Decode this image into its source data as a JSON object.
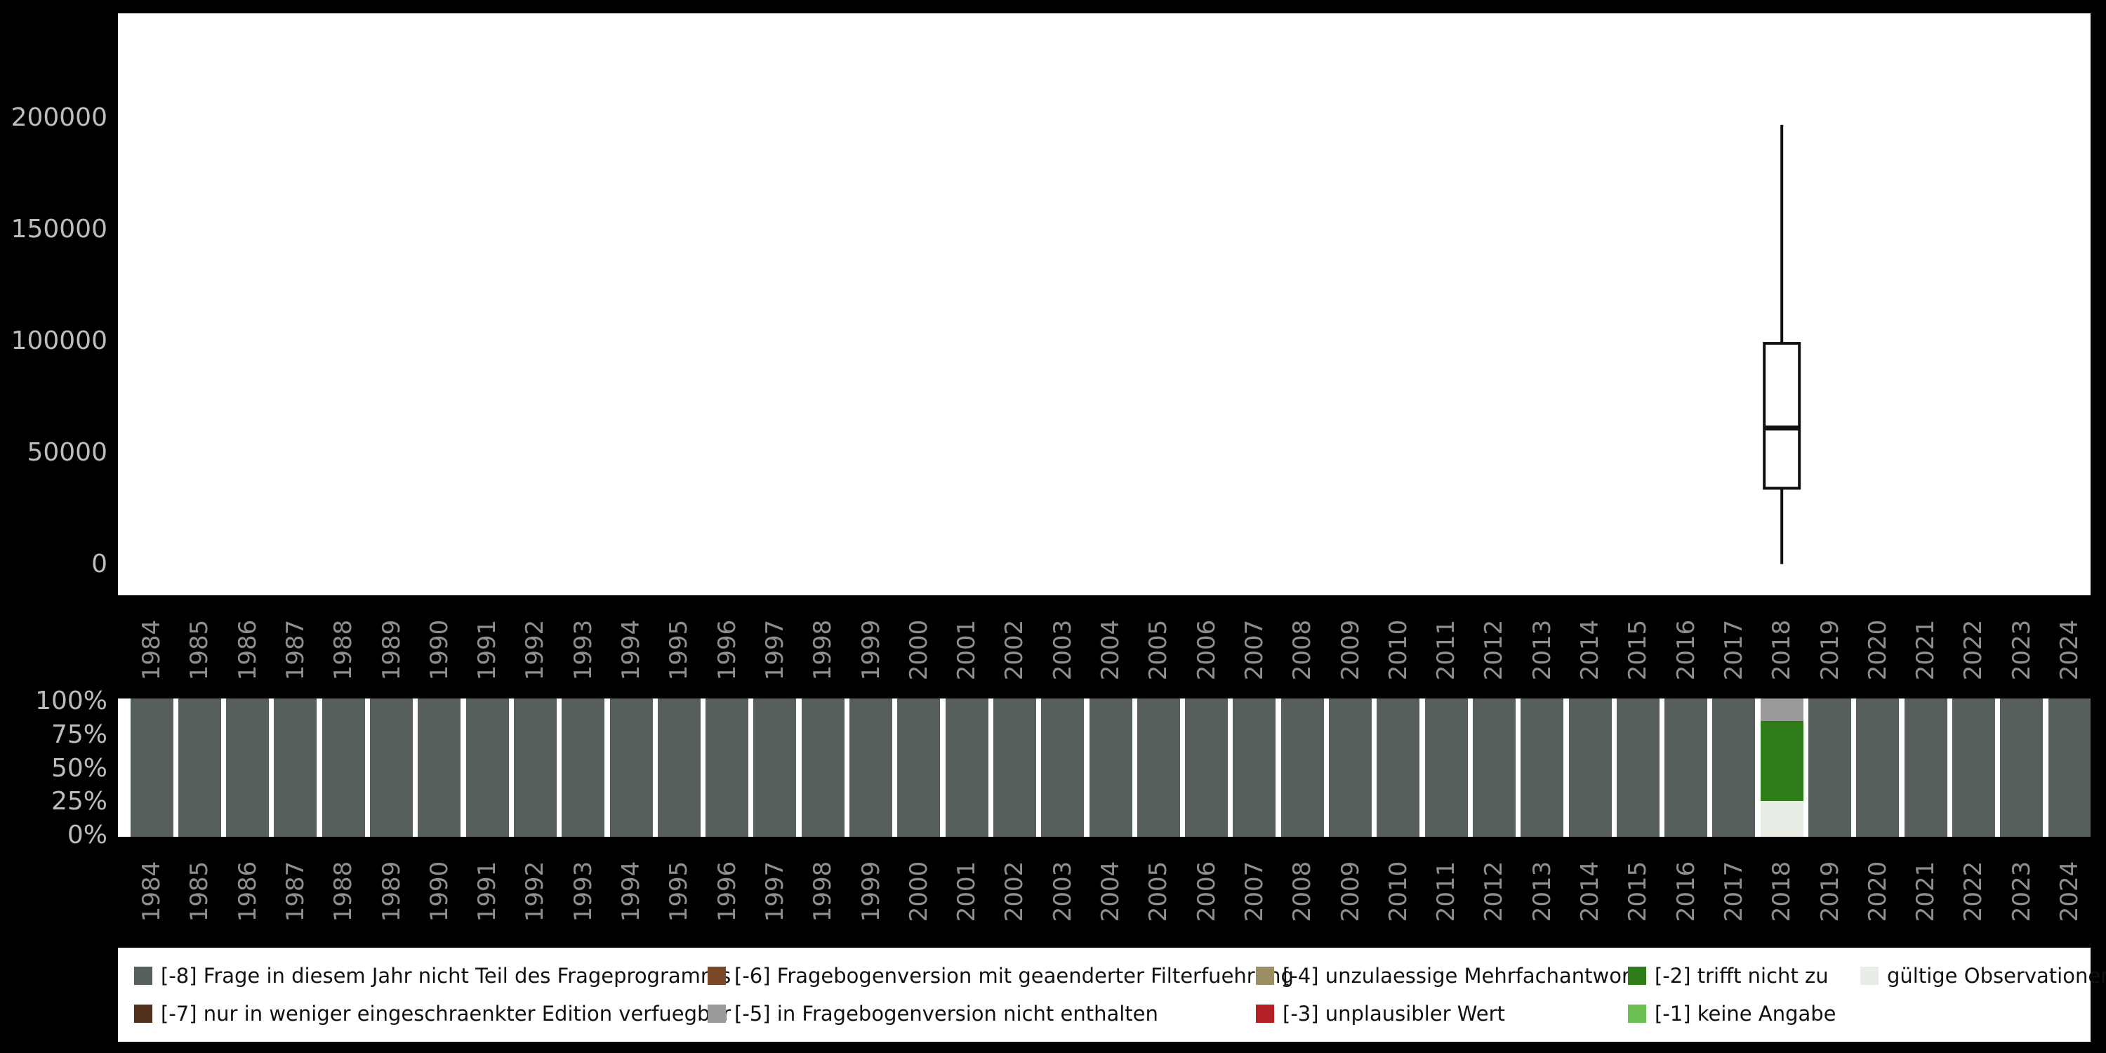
{
  "page": {
    "background": "#000000",
    "panel_background": "#ffffff",
    "axis_label_color": "#bdbdbd",
    "year_label_color": "#8f8f8f"
  },
  "chart_data": [
    {
      "type": "boxplot",
      "title": "",
      "xlabel": "",
      "ylabel": "",
      "x_categories": [
        "1984",
        "1985",
        "1986",
        "1987",
        "1988",
        "1989",
        "1990",
        "1991",
        "1992",
        "1993",
        "1994",
        "1995",
        "1996",
        "1997",
        "1998",
        "1999",
        "2000",
        "2001",
        "2002",
        "2003",
        "2004",
        "2005",
        "2006",
        "2007",
        "2008",
        "2009",
        "2010",
        "2011",
        "2012",
        "2013",
        "2014",
        "2015",
        "2016",
        "2017",
        "2018",
        "2019",
        "2020",
        "2021",
        "2022",
        "2023",
        "2024"
      ],
      "ytick_labels": [
        "0",
        "50000",
        "100000",
        "150000",
        "200000"
      ],
      "ytick_values": [
        0,
        50000,
        100000,
        150000,
        200000
      ],
      "ylim": [
        0,
        247000
      ],
      "grid": false,
      "series": [
        {
          "year": "2018",
          "min": 0,
          "q1": 34000,
          "median": 61000,
          "q3": 99000,
          "max": 197000
        }
      ]
    },
    {
      "type": "stacked-bar-percent",
      "title": "",
      "xlabel": "",
      "ylabel": "",
      "x_categories": [
        "1984",
        "1985",
        "1986",
        "1987",
        "1988",
        "1989",
        "1990",
        "1991",
        "1992",
        "1993",
        "1994",
        "1995",
        "1996",
        "1997",
        "1998",
        "1999",
        "2000",
        "2001",
        "2002",
        "2003",
        "2004",
        "2005",
        "2006",
        "2007",
        "2008",
        "2009",
        "2010",
        "2011",
        "2012",
        "2013",
        "2014",
        "2015",
        "2016",
        "2017",
        "2018",
        "2019",
        "2020",
        "2021",
        "2022",
        "2023",
        "2024"
      ],
      "ytick_labels": [
        "100%",
        "75%",
        "50%",
        "25%",
        "0%"
      ],
      "ytick_values": [
        100,
        75,
        50,
        25,
        0
      ],
      "default_segments": [
        {
          "legend_id": "-8",
          "pct": 100
        }
      ],
      "overrides": {
        "2018": [
          {
            "legend_id": "valid",
            "pct": 26
          },
          {
            "legend_id": "-2",
            "pct": 58
          },
          {
            "legend_id": "-5",
            "pct": 16
          }
        ]
      }
    }
  ],
  "legend": {
    "position": "bottom",
    "items": [
      {
        "id": "-8",
        "label": "[-8] Frage in diesem Jahr nicht Teil des Frageprogramms",
        "color": "#575e5e"
      },
      {
        "id": "-7",
        "label": "[-7] nur in weniger eingeschraenkter Edition verfuegbar",
        "color": "#53301b"
      },
      {
        "id": "-6",
        "label": "[-6] Fragebogenversion mit geaenderter Filterfuehrung",
        "color": "#7a4a28"
      },
      {
        "id": "-5",
        "label": "[-5] in Fragebogenversion nicht enthalten",
        "color": "#9a9a9a"
      },
      {
        "id": "-4",
        "label": "[-4] unzulaessige Mehrfachantwort",
        "color": "#9c8e63"
      },
      {
        "id": "-3",
        "label": "[-3] unplausibler Wert",
        "color": "#b52025"
      },
      {
        "id": "-2",
        "label": "[-2] trifft nicht zu",
        "color": "#2f7d1a"
      },
      {
        "id": "-1",
        "label": "[-1] keine Angabe",
        "color": "#6cbf52"
      },
      {
        "id": "valid",
        "label": "gültige Observationen",
        "color": "#e8eee6"
      }
    ]
  }
}
